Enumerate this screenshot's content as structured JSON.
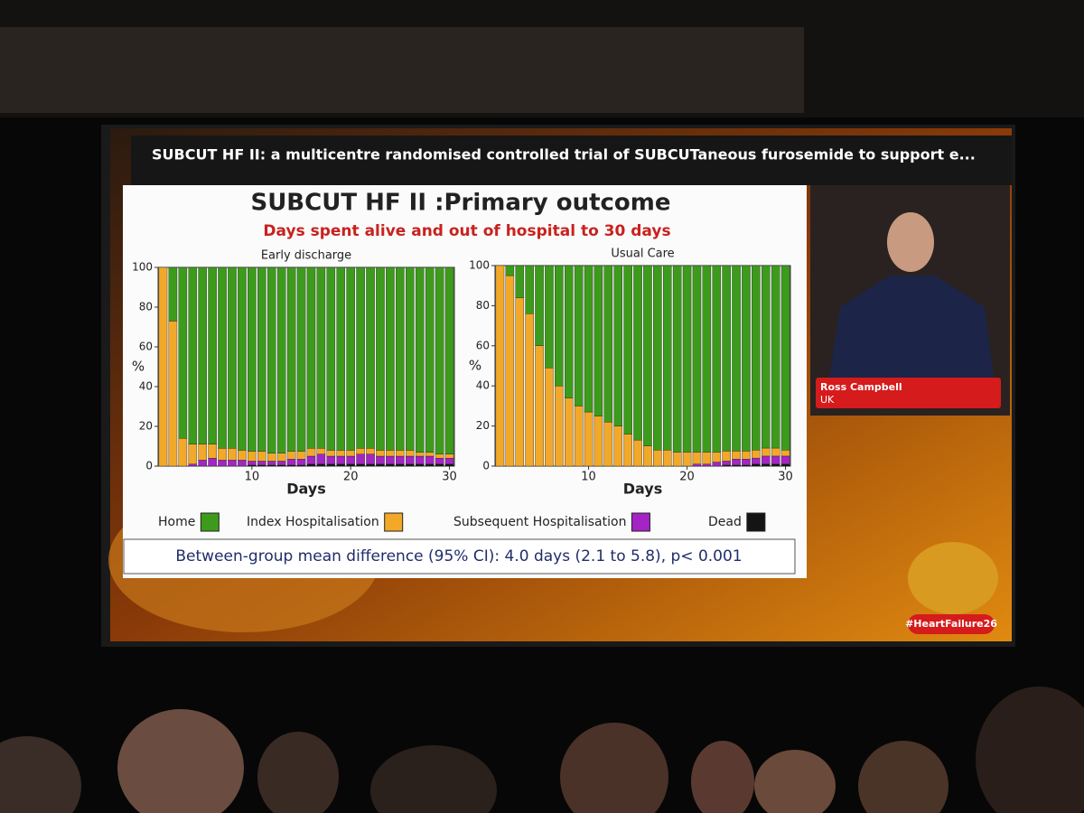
{
  "header": "SUBCUT HF II: a multicentre randomised controlled trial of SUBCUTaneous furosemide to support e...",
  "slide": {
    "title": "SUBCUT HF II :Primary outcome",
    "subtitle": "Days spent alive and out of hospital to 30 days",
    "footer": "Between-group mean difference (95% CI): 4.0 days (2.1 to 5.8), p< 0.001"
  },
  "speaker": {
    "name": "Ross Campbell",
    "country": "UK"
  },
  "hashtag": "#HeartFailure26",
  "chart_data": [
    {
      "type": "bar",
      "stacked": true,
      "title": "Early discharge",
      "xlabel": "Days",
      "ylabel": "%",
      "x": [
        1,
        2,
        3,
        4,
        5,
        6,
        7,
        8,
        9,
        10,
        11,
        12,
        13,
        14,
        15,
        16,
        17,
        18,
        19,
        20,
        21,
        22,
        23,
        24,
        25,
        26,
        27,
        28,
        29,
        30
      ],
      "xlim": [
        0.5,
        30.5
      ],
      "xticks": [
        10,
        20,
        30
      ],
      "ylim": [
        0,
        100
      ],
      "yticks": [
        0,
        20,
        40,
        60,
        80,
        100
      ],
      "series": [
        {
          "name": "Home",
          "color": "#3d9b1c",
          "values": [
            0,
            27,
            86,
            89,
            89,
            89,
            91,
            91,
            92,
            92.5,
            92.5,
            93.5,
            93.5,
            92.5,
            92.5,
            91,
            91,
            92,
            92,
            92,
            91,
            91,
            92,
            92,
            92,
            92,
            93,
            93,
            94,
            94
          ]
        },
        {
          "name": "Index Hospitalisation",
          "color": "#f2a828",
          "values": [
            100,
            73,
            14,
            10,
            8,
            7,
            6,
            6,
            5,
            5,
            5,
            4,
            4,
            4,
            4,
            4,
            3,
            3,
            3,
            3,
            3,
            3,
            3,
            3,
            3,
            3,
            2,
            2,
            2,
            2
          ]
        },
        {
          "name": "Subsequent Hospitalisation",
          "color": "#a424c4",
          "values": [
            0,
            0,
            0,
            1,
            3,
            4,
            3,
            3,
            3,
            2,
            2,
            2,
            2,
            3,
            3,
            4,
            5,
            4,
            4,
            4,
            5,
            5,
            4,
            4,
            4,
            4,
            4,
            4,
            3,
            3
          ]
        },
        {
          "name": "Dead",
          "color": "#141414",
          "values": [
            0,
            0,
            0,
            0,
            0,
            0,
            0,
            0,
            0,
            0.5,
            0.5,
            0.5,
            0.5,
            0.5,
            0.5,
            1,
            1,
            1,
            1,
            1,
            1,
            1,
            1,
            1,
            1,
            1,
            1,
            1,
            1,
            1
          ]
        }
      ]
    },
    {
      "type": "bar",
      "stacked": true,
      "title": "Usual Care",
      "xlabel": "Days",
      "ylabel": "%",
      "x": [
        1,
        2,
        3,
        4,
        5,
        6,
        7,
        8,
        9,
        10,
        11,
        12,
        13,
        14,
        15,
        16,
        17,
        18,
        19,
        20,
        21,
        22,
        23,
        24,
        25,
        26,
        27,
        28,
        29,
        30
      ],
      "xlim": [
        0.5,
        30.5
      ],
      "xticks": [
        10,
        20,
        30
      ],
      "ylim": [
        0,
        100
      ],
      "yticks": [
        0,
        20,
        40,
        60,
        80,
        100
      ],
      "series": [
        {
          "name": "Home",
          "color": "#3d9b1c",
          "values": [
            0,
            5,
            16,
            24,
            40,
            51,
            60,
            66,
            70,
            73,
            75,
            78,
            80,
            84,
            87,
            90,
            92,
            92,
            93,
            93,
            93,
            93,
            93,
            92.5,
            92.5,
            92.5,
            92,
            91,
            91,
            92
          ]
        },
        {
          "name": "Index Hospitalisation",
          "color": "#f2a828",
          "values": [
            100,
            95,
            84,
            76,
            60,
            49,
            40,
            34,
            30,
            27,
            25,
            22,
            20,
            16,
            13,
            10,
            8,
            8,
            7,
            7,
            6,
            6,
            5,
            5,
            4,
            4,
            4,
            4,
            4,
            3
          ]
        },
        {
          "name": "Subsequent Hospitalisation",
          "color": "#a424c4",
          "values": [
            0,
            0,
            0,
            0,
            0,
            0,
            0,
            0,
            0,
            0,
            0,
            0,
            0,
            0,
            0,
            0,
            0,
            0,
            0,
            0,
            1,
            1,
            2,
            2,
            3,
            3,
            3,
            4,
            4,
            4
          ]
        },
        {
          "name": "Dead",
          "color": "#141414",
          "values": [
            0,
            0,
            0,
            0,
            0,
            0,
            0,
            0,
            0,
            0,
            0,
            0,
            0,
            0,
            0,
            0,
            0,
            0,
            0,
            0,
            0,
            0,
            0,
            0.5,
            0.5,
            0.5,
            1,
            1,
            1,
            1
          ]
        }
      ]
    }
  ]
}
